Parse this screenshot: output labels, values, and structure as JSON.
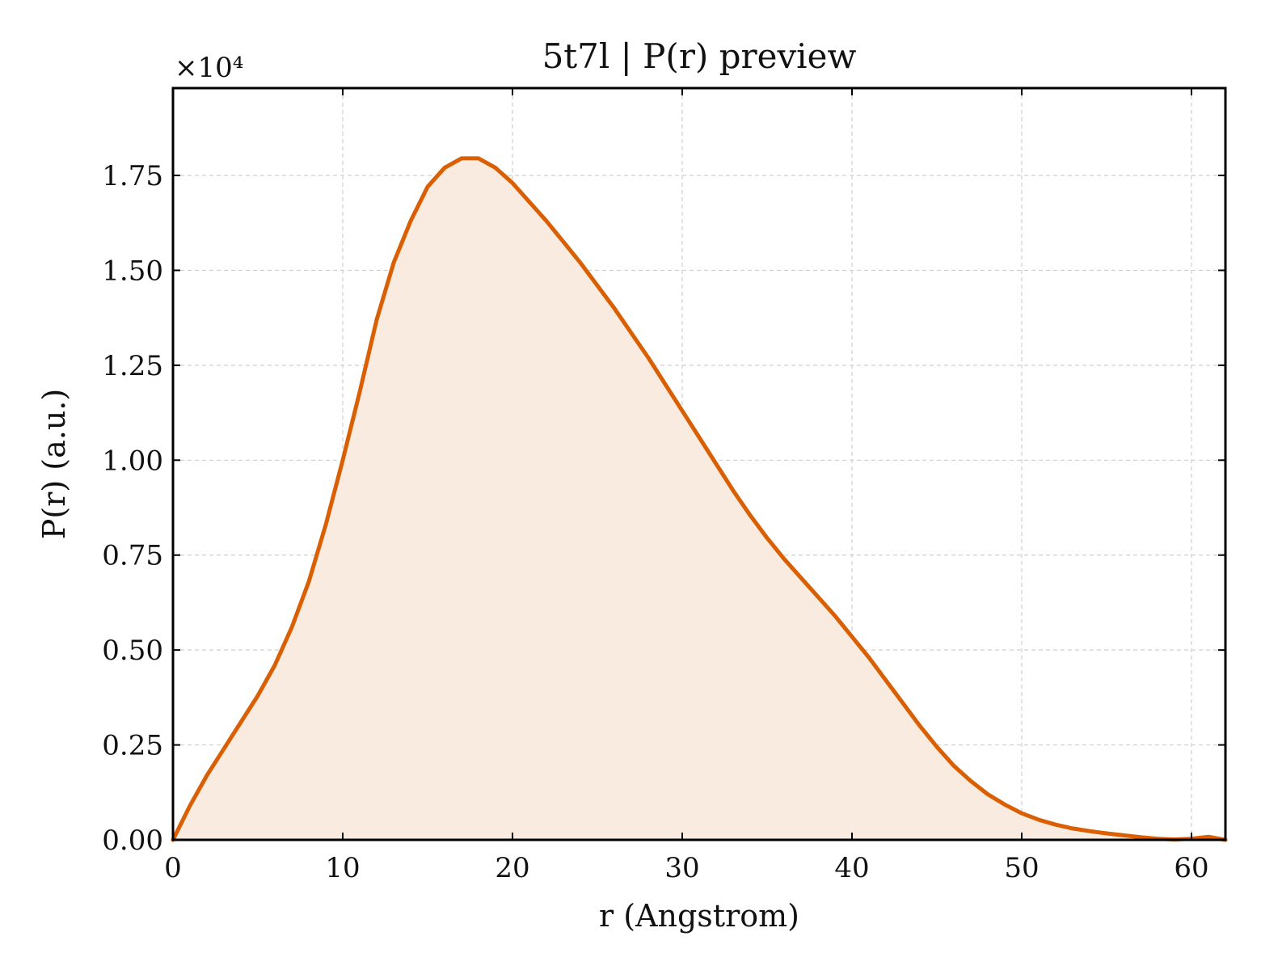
{
  "chart_data": {
    "type": "area",
    "title": "5t7l | P(r) preview",
    "xlabel": "r (Angstrom)",
    "ylabel": "P(r) (a.u.)",
    "y_multiplier_label": "×10⁴",
    "xlim": [
      0,
      62
    ],
    "ylim": [
      0,
      1.98
    ],
    "xticks": [
      0,
      10,
      20,
      30,
      40,
      50,
      60
    ],
    "xtick_labels": [
      "0",
      "10",
      "20",
      "30",
      "40",
      "50",
      "60"
    ],
    "yticks": [
      0,
      0.25,
      0.5,
      0.75,
      1.0,
      1.25,
      1.5,
      1.75
    ],
    "ytick_labels": [
      "0.00",
      "0.25",
      "0.50",
      "0.75",
      "1.00",
      "1.25",
      "1.50",
      "1.75"
    ],
    "grid": true,
    "line_color": "#d95f02",
    "fill_color": "#f9ebe0",
    "series": [
      {
        "x": [
          0,
          1,
          2,
          3,
          4,
          5,
          6,
          7,
          8,
          9,
          10,
          11,
          12,
          13,
          14,
          15,
          16,
          17,
          18,
          19,
          20,
          21,
          22,
          23,
          24,
          25,
          26,
          27,
          28,
          29,
          30,
          31,
          32,
          33,
          34,
          35,
          36,
          37,
          38,
          39,
          40,
          41,
          42,
          43,
          44,
          45,
          46,
          47,
          48,
          49,
          50,
          51,
          52,
          53,
          54,
          55,
          56,
          57,
          58,
          59,
          60,
          61,
          62
        ],
        "y": [
          0.0,
          0.09,
          0.17,
          0.24,
          0.31,
          0.38,
          0.46,
          0.56,
          0.68,
          0.83,
          1.0,
          1.18,
          1.37,
          1.52,
          1.63,
          1.72,
          1.77,
          1.795,
          1.795,
          1.77,
          1.73,
          1.68,
          1.63,
          1.575,
          1.52,
          1.46,
          1.4,
          1.335,
          1.27,
          1.2,
          1.13,
          1.06,
          0.99,
          0.92,
          0.855,
          0.795,
          0.74,
          0.69,
          0.64,
          0.59,
          0.535,
          0.48,
          0.42,
          0.36,
          0.3,
          0.245,
          0.195,
          0.155,
          0.12,
          0.093,
          0.07,
          0.053,
          0.04,
          0.03,
          0.023,
          0.017,
          0.012,
          0.007,
          0.003,
          0.001,
          0.003,
          0.008,
          0.0
        ]
      }
    ]
  }
}
